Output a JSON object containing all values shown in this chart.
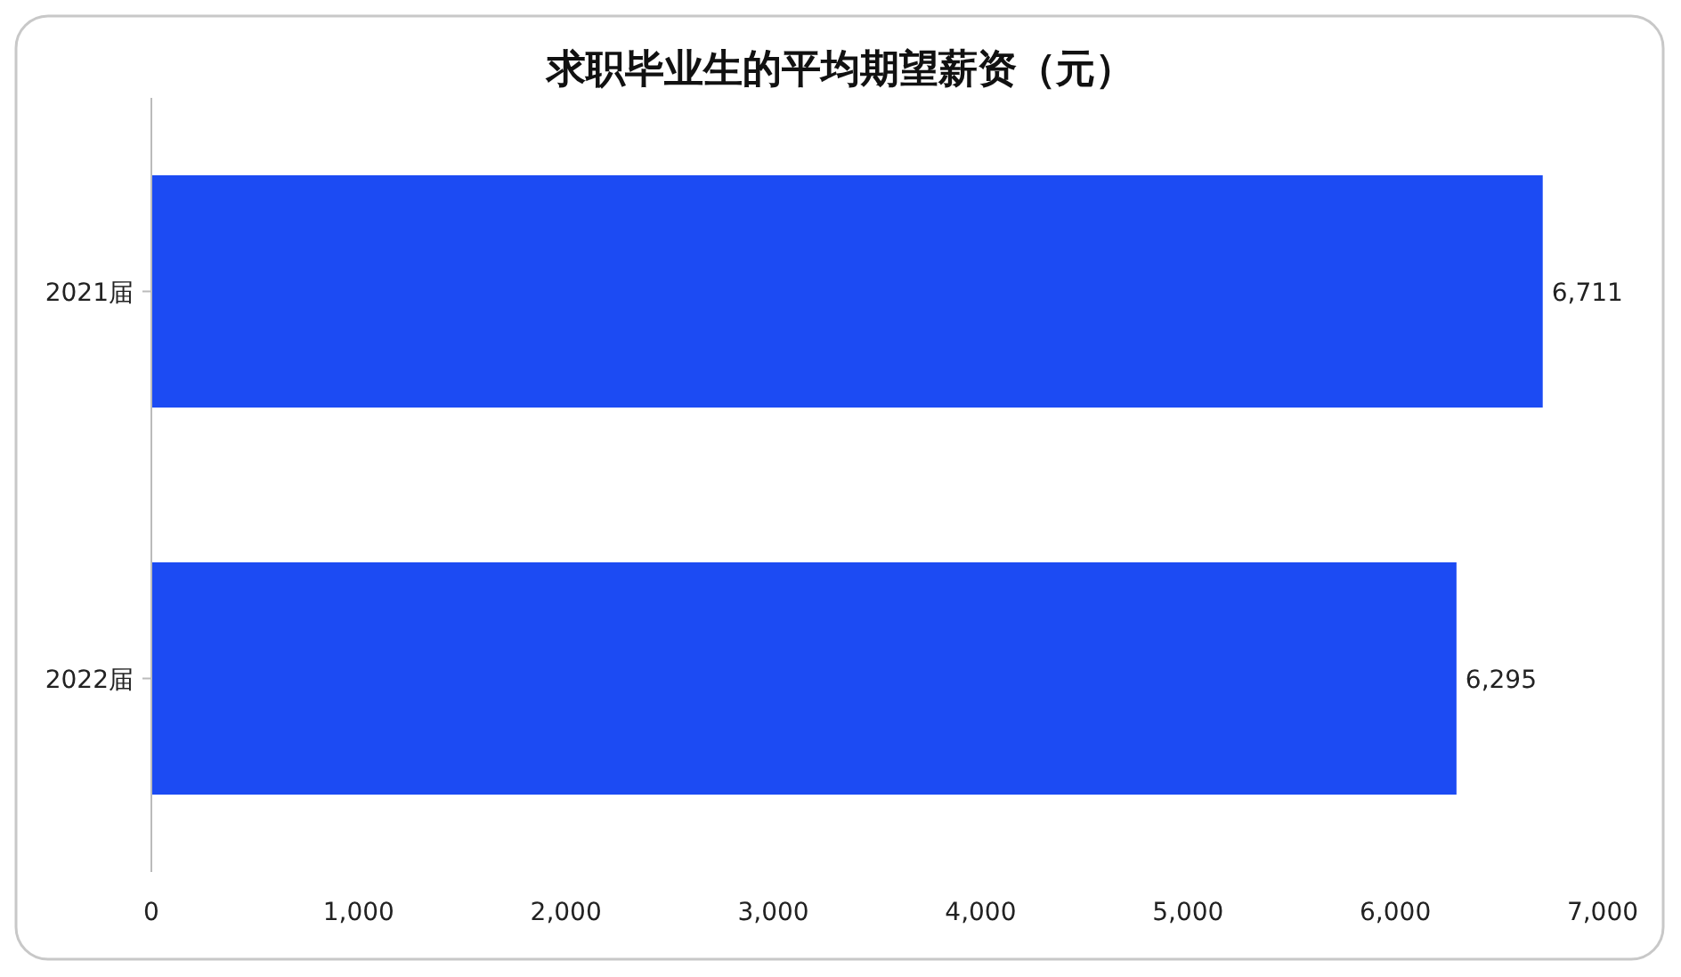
{
  "chart_data": {
    "type": "bar",
    "orientation": "horizontal",
    "title": "求职毕业生的平均期望薪资（元）",
    "categories": [
      "2021届",
      "2022届"
    ],
    "values": [
      6711,
      6295
    ],
    "value_labels": [
      "6,711",
      "6,295"
    ],
    "color": "#1c4bf3",
    "xlim": [
      0,
      7000
    ],
    "xticks": [
      0,
      {
        "value": 1000,
        "label": "1,000"
      },
      {
        "value": 2000,
        "label": "2,000"
      },
      {
        "value": 3000,
        "label": "3,000"
      },
      {
        "value": 4000,
        "label": "4,000"
      },
      {
        "value": 5000,
        "label": "5,000"
      },
      {
        "value": 6000,
        "label": "6,000"
      },
      {
        "value": 7000,
        "label": "7,000"
      }
    ],
    "grid": false,
    "legend": false
  }
}
